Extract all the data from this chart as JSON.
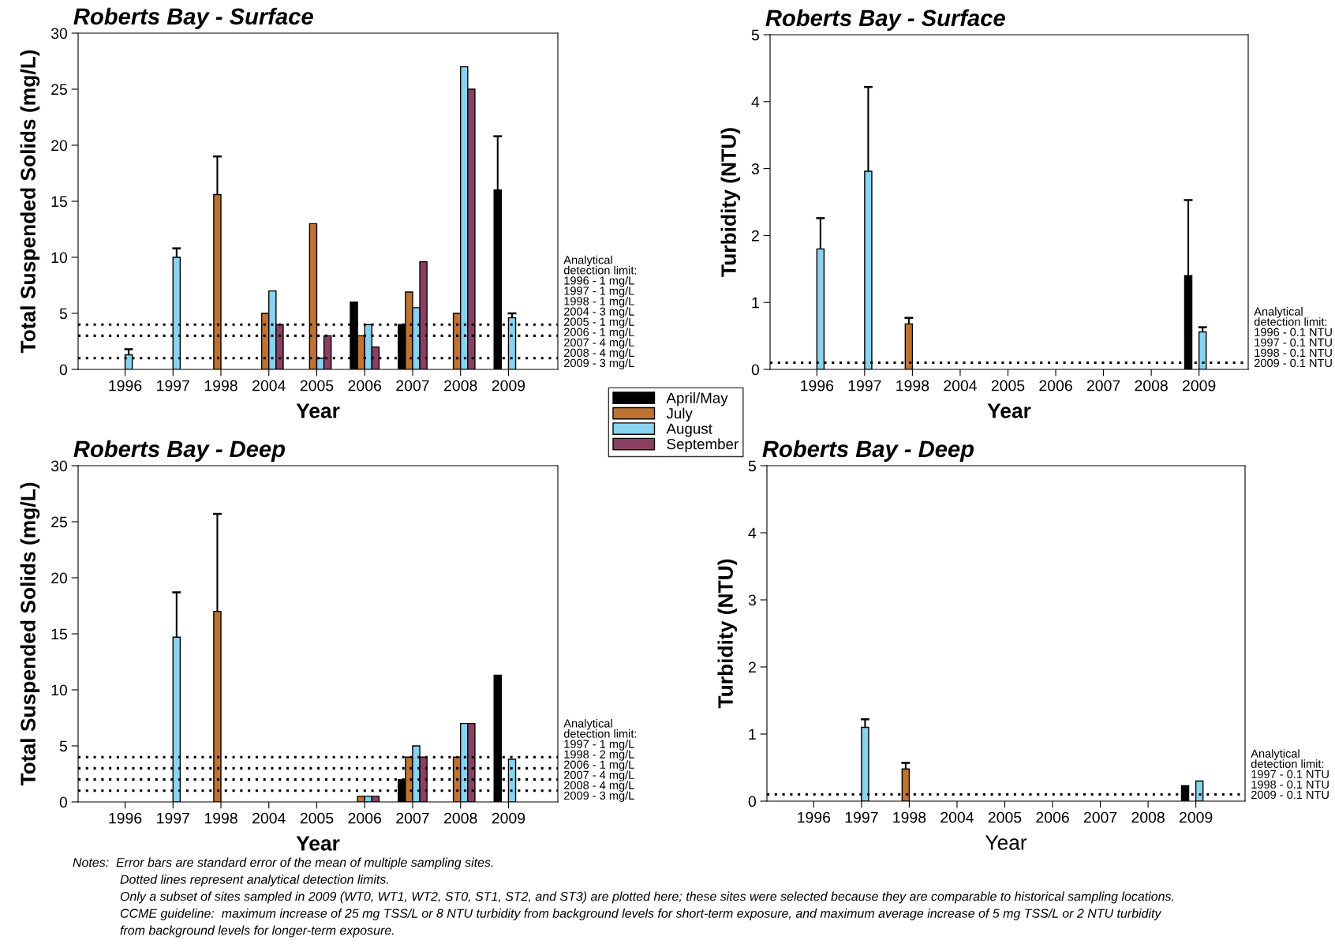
{
  "chart_data": [
    {
      "type": "bar",
      "title": "Roberts Bay - Surface",
      "xlabel": "Year",
      "ylabel": "Total Suspended Solids (mg/L)",
      "categories": [
        "1996",
        "1997",
        "1998",
        "2004",
        "2005",
        "2006",
        "2007",
        "2008",
        "2009"
      ],
      "ylim": [
        0,
        30
      ],
      "yticks": [
        0,
        5,
        10,
        15,
        20,
        25,
        30
      ],
      "legend": "bottom right",
      "series": [
        {
          "name": "April/May",
          "color": "#000000",
          "values": [
            null,
            null,
            null,
            null,
            null,
            6,
            4,
            null,
            16
          ],
          "errors": [
            null,
            null,
            null,
            null,
            null,
            null,
            null,
            null,
            [
              16,
              20.8
            ]
          ]
        },
        {
          "name": "July",
          "color": "#c0722f",
          "values": [
            null,
            null,
            15.6,
            5,
            13,
            3,
            6.9,
            5,
            null
          ],
          "errors": [
            null,
            null,
            [
              15.6,
              19.0
            ],
            null,
            null,
            null,
            null,
            null,
            null
          ]
        },
        {
          "name": "August",
          "color": "#87d3f0",
          "values": [
            1.3,
            10,
            null,
            7,
            1,
            4,
            5.5,
            27,
            4.6
          ],
          "errors": [
            [
              1.3,
              1.8
            ],
            [
              10,
              10.8
            ],
            null,
            null,
            null,
            null,
            null,
            null,
            [
              4.6,
              5.0
            ]
          ]
        },
        {
          "name": "September",
          "color": "#8b3f63",
          "values": [
            null,
            null,
            null,
            4,
            3,
            2,
            9.6,
            25,
            null
          ]
        }
      ],
      "ref_lines": [
        {
          "axis": "y",
          "value": 4,
          "line_style": "dotted"
        },
        {
          "axis": "y",
          "value": 3,
          "line_style": "dotted"
        },
        {
          "axis": "y",
          "value": 1,
          "line_style": "dotted"
        }
      ],
      "annotations": [
        "Analytical\ndetection limit:\n1996 - 1 mg/L\n1997 - 1 mg/L\n1998 - 1 mg/L\n2004 - 3 mg/L\n2005 - 1 mg/L\n2006 - 1 mg/L\n2007 - 4 mg/L\n2008 - 4 mg/L\n2009 - 3 mg/L"
      ]
    },
    {
      "type": "bar",
      "title": "Roberts Bay - Surface",
      "xlabel": "Year",
      "ylabel": "Turbidity (NTU)",
      "categories": [
        "1996",
        "1997",
        "1998",
        "2004",
        "2005",
        "2006",
        "2007",
        "2008",
        "2009"
      ],
      "ylim": [
        0,
        5
      ],
      "yticks": [
        0,
        1,
        2,
        3,
        4,
        5
      ],
      "series": [
        {
          "color": "#000000",
          "values": [
            null,
            null,
            null,
            null,
            null,
            null,
            null,
            null,
            1.4
          ],
          "errors": [
            null,
            null,
            null,
            null,
            null,
            null,
            null,
            null,
            [
              1.4,
              2.53
            ]
          ]
        },
        {
          "color": "#c0722f",
          "values": [
            null,
            null,
            0.68,
            null,
            null,
            null,
            null,
            null,
            null
          ],
          "errors": [
            null,
            null,
            [
              0.68,
              0.77
            ],
            null,
            null,
            null,
            null,
            null,
            null
          ]
        },
        {
          "color": "#87d3f0",
          "values": [
            1.8,
            2.96,
            null,
            null,
            null,
            null,
            null,
            null,
            0.56
          ],
          "errors": [
            [
              1.8,
              2.26
            ],
            [
              2.96,
              4.22
            ],
            null,
            null,
            null,
            null,
            null,
            null,
            [
              0.56,
              0.63
            ]
          ]
        },
        {
          "color": "#8b3f63",
          "values": [
            null,
            null,
            null,
            null,
            null,
            null,
            null,
            null,
            null
          ]
        }
      ],
      "ref_lines": [
        {
          "axis": "y",
          "value": 0.1,
          "line_style": "dotted"
        }
      ],
      "annotations": [
        "Analytical\ndetection limit:\n1996 - 0.1 NTU\n1997 - 0.1 NTU\n1998 - 0.1 NTU\n2009 - 0.1 NTU"
      ]
    },
    {
      "type": "bar",
      "title": "Roberts Bay - Deep",
      "xlabel": "Year",
      "ylabel": "Total Suspended Solids (mg/L)",
      "categories": [
        "1996",
        "1997",
        "1998",
        "2004",
        "2005",
        "2006",
        "2007",
        "2008",
        "2009"
      ],
      "ylim": [
        0,
        30
      ],
      "yticks": [
        0,
        5,
        10,
        15,
        20,
        25,
        30
      ],
      "series": [
        {
          "color": "#000000",
          "values": [
            null,
            null,
            null,
            null,
            null,
            null,
            2,
            null,
            11.3
          ]
        },
        {
          "color": "#c0722f",
          "values": [
            null,
            null,
            17,
            null,
            null,
            0.5,
            4,
            4,
            null
          ],
          "errors": [
            null,
            null,
            [
              17,
              25.7
            ],
            null,
            null,
            null,
            null,
            null,
            null
          ]
        },
        {
          "color": "#87d3f0",
          "values": [
            null,
            14.7,
            null,
            null,
            null,
            0.5,
            5,
            7,
            3.8
          ],
          "errors": [
            null,
            [
              14.7,
              18.7
            ],
            null,
            null,
            null,
            null,
            null,
            null,
            null
          ]
        },
        {
          "color": "#8b3f63",
          "values": [
            null,
            null,
            null,
            null,
            null,
            0.5,
            4,
            7,
            null
          ]
        }
      ],
      "ref_lines": [
        {
          "axis": "y",
          "value": 4,
          "line_style": "dotted"
        },
        {
          "axis": "y",
          "value": 3,
          "line_style": "dotted"
        },
        {
          "axis": "y",
          "value": 2,
          "line_style": "dotted"
        },
        {
          "axis": "y",
          "value": 1,
          "line_style": "dotted"
        }
      ],
      "annotations": [
        "Analytical\ndetection limit:\n1997 - 1 mg/L\n1998 - 2 mg/L\n2006 - 1 mg/L\n2007 - 4 mg/L\n2008 - 4 mg/L\n2009 - 3 mg/L",
        "Notes:  Error bars are standard error of the mean of multiple sampling sites.",
        "Dotted lines represent analytical detection limits.",
        "Only a subset of sites sampled in 2009 (WT0, WT1, WT2, ST0, ST1, ST2, and ST3) are plotted here; these sites were selected because they are comparable to historical sampling locations.",
        "CCME guideline:  maximum increase of 25 mg TSS/L or 8 NTU turbidity from background levels for short-term exposure, and maximum average increase of 5 mg TSS/L or 2 NTU turbidity",
        "from background levels for longer-term exposure."
      ]
    },
    {
      "type": "bar",
      "title": "Roberts Bay - Deep",
      "xlabel": "Year",
      "ylabel": "Turbidity (NTU)",
      "categories": [
        "1996",
        "1997",
        "1998",
        "2004",
        "2005",
        "2006",
        "2007",
        "2008",
        "2009"
      ],
      "ylim": [
        0,
        5
      ],
      "yticks": [
        0,
        1,
        2,
        3,
        4,
        5
      ],
      "series": [
        {
          "color": "#000000",
          "values": [
            null,
            null,
            null,
            null,
            null,
            null,
            null,
            null,
            0.23
          ]
        },
        {
          "color": "#c0722f",
          "values": [
            null,
            null,
            0.48,
            null,
            null,
            null,
            null,
            null,
            null
          ],
          "errors": [
            null,
            null,
            [
              0.48,
              0.57
            ],
            null,
            null,
            null,
            null,
            null,
            null
          ]
        },
        {
          "color": "#87d3f0",
          "values": [
            null,
            1.1,
            null,
            null,
            null,
            null,
            null,
            null,
            0.3
          ],
          "errors": [
            null,
            [
              1.1,
              1.22
            ],
            null,
            null,
            null,
            null,
            null,
            null,
            null
          ]
        },
        {
          "color": "#8b3f63",
          "values": [
            null,
            null,
            null,
            null,
            null,
            null,
            null,
            null,
            null
          ]
        }
      ],
      "ref_lines": [
        {
          "axis": "y",
          "value": 0.1,
          "line_style": "dotted"
        }
      ],
      "annotations": [
        "Analytical\ndetection limit:\n1997 - 0.1 NTU\n1998 - 0.1 NTU\n2009 - 0.1 NTU"
      ]
    }
  ]
}
